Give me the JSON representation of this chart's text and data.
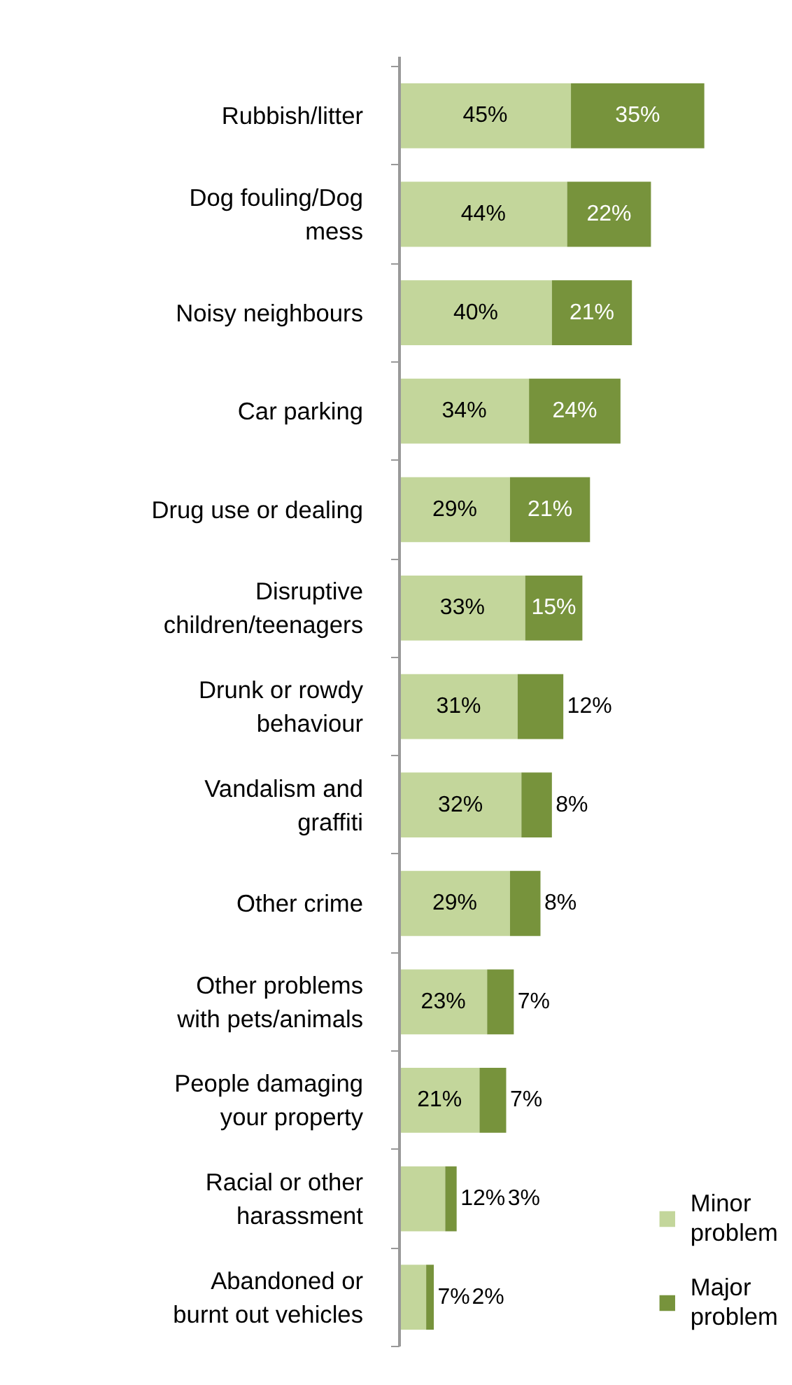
{
  "chart_data": {
    "type": "bar",
    "orientation": "horizontal",
    "stacked": true,
    "legend": "bottom right",
    "grid": false,
    "categories": [
      "Rubbish/litter",
      "Dog fouling/Dog\nmess",
      "Noisy neighbours",
      "Car parking",
      "Drug use or dealing",
      "Disruptive\nchildren/teenagers",
      "Drunk or rowdy\nbehaviour",
      "Vandalism and\ngraffiti",
      "Other crime",
      "Other problems\nwith pets/animals",
      "People damaging\nyour property",
      "Racial or other\nharassment",
      "Abandoned or\nburnt out vehicles"
    ],
    "series": [
      {
        "name": "Minor\nproblem",
        "color": "#c3d69b",
        "values": [
          45,
          44,
          40,
          34,
          29,
          33,
          31,
          32,
          29,
          23,
          21,
          12,
          7
        ],
        "value_labels": [
          "45%",
          "44%",
          "40%",
          "34%",
          "29%",
          "33%",
          "31%",
          "32%",
          "29%",
          "23%",
          "21%",
          "12%",
          "7%"
        ]
      },
      {
        "name": "Major\nproblem",
        "color": "#77933c",
        "values": [
          35,
          22,
          21,
          24,
          21,
          15,
          12,
          8,
          8,
          7,
          7,
          3,
          2
        ],
        "value_labels": [
          "35%",
          "22%",
          "21%",
          "24%",
          "21%",
          "15%",
          "12%",
          "8%",
          "8%",
          "7%",
          "7%",
          "3%",
          "2%"
        ]
      }
    ]
  }
}
